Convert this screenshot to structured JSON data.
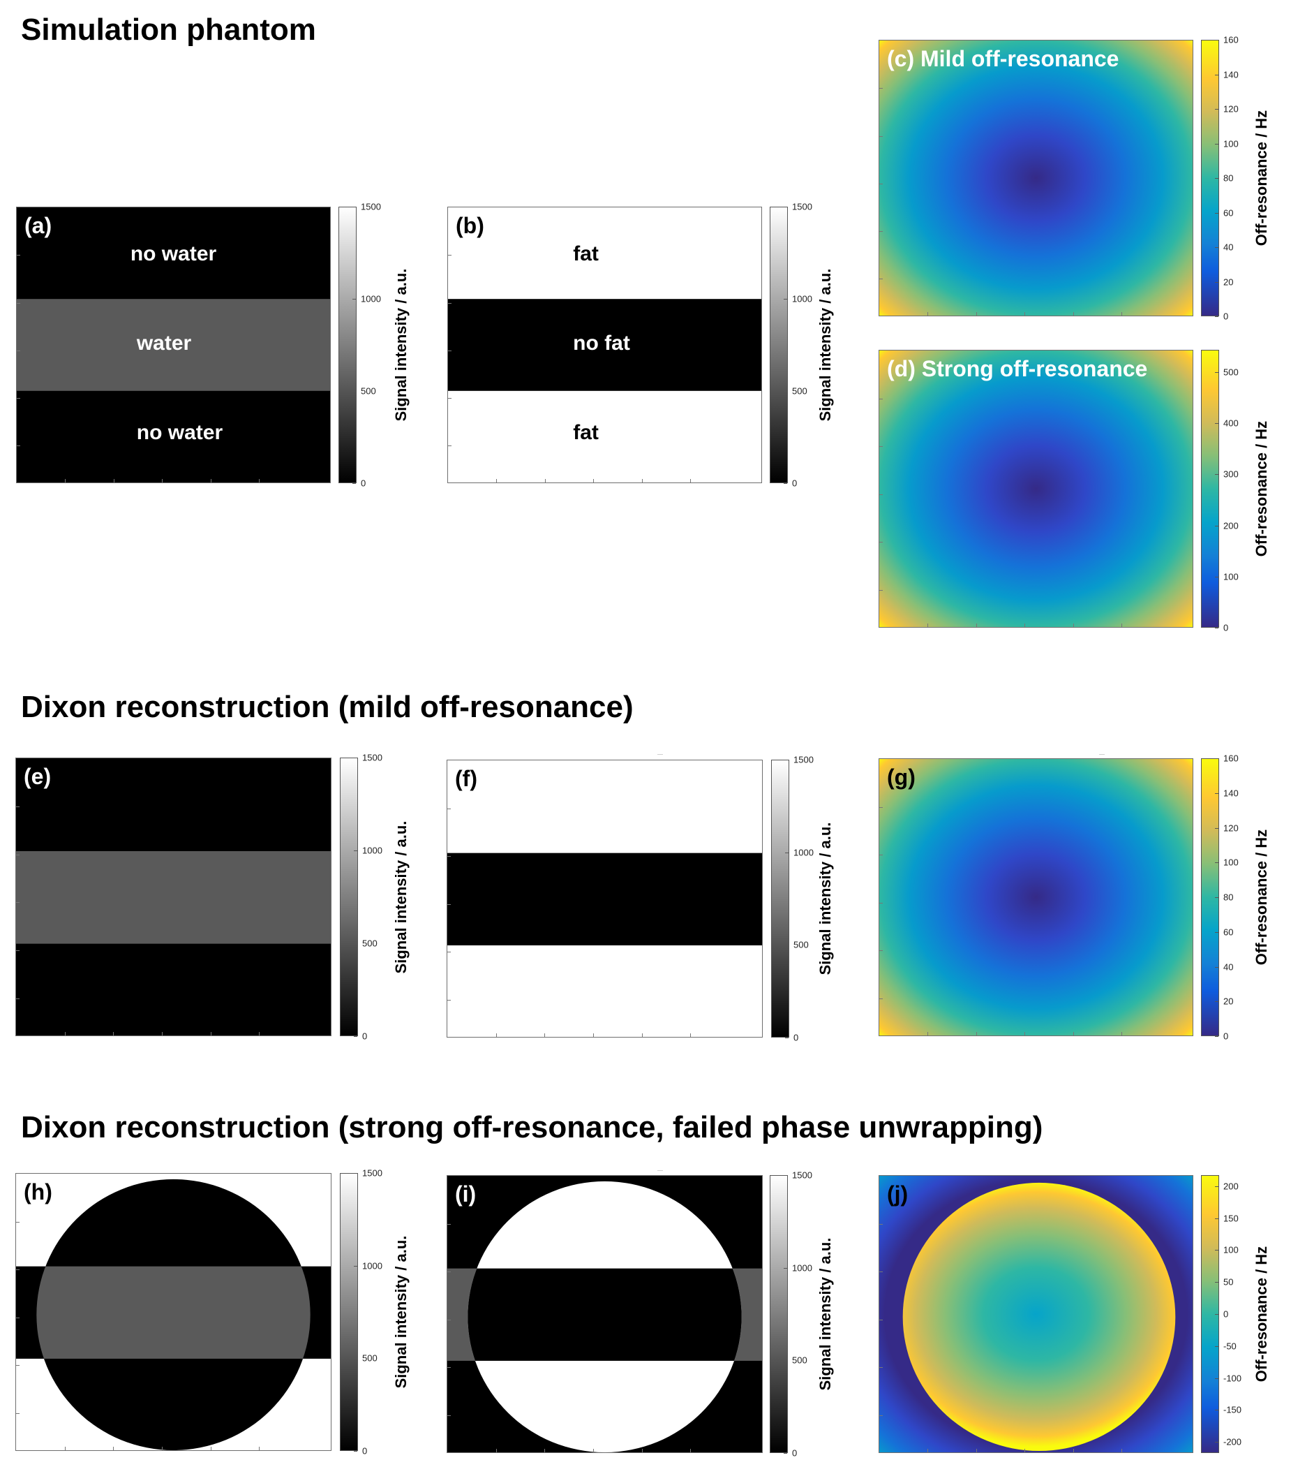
{
  "sections": {
    "s1": "Simulation phantom",
    "s2": "Dixon reconstruction (mild off-resonance)",
    "s3": "Dixon reconstruction (strong off-resonance, failed phase unwrapping)"
  },
  "panels": {
    "a": {
      "label": "(a)",
      "annotations": [
        "no water",
        "water",
        "no water"
      ]
    },
    "b": {
      "label": "(b)",
      "annotations": [
        "fat",
        "no fat",
        "fat"
      ]
    },
    "c": {
      "label": "(c) Mild off-resonance"
    },
    "d": {
      "label": "(d) Strong off-resonance"
    },
    "e": {
      "label": "(e)"
    },
    "f": {
      "label": "(f)"
    },
    "g": {
      "label": "(g)"
    },
    "h": {
      "label": "(h)"
    },
    "i": {
      "label": "(i)"
    },
    "j": {
      "label": "(j)"
    }
  },
  "colorbars": {
    "signal": {
      "label": "Signal intensity / a.u.",
      "ticks": [
        "1500",
        "1000",
        "500",
        "0"
      ],
      "colormap": "gray"
    },
    "mild": {
      "label": "Off-resonance / Hz",
      "ticks": [
        "160",
        "140",
        "120",
        "100",
        "80",
        "60",
        "40",
        "20",
        "0"
      ],
      "colormap": "parula"
    },
    "strong": {
      "label": "Off-resonance / Hz",
      "ticks": [
        "500",
        "400",
        "300",
        "200",
        "100",
        "0"
      ],
      "colormap": "parula"
    },
    "wrapped": {
      "label": "Off-resonance / Hz",
      "ticks": [
        "200",
        "150",
        "100",
        "50",
        "0",
        "-50",
        "-100",
        "-150",
        "-200"
      ],
      "colormap": "parula"
    }
  },
  "colors": {
    "water_gray": "#5a5a5a",
    "background": "#ffffff",
    "label_light": "#ffffff",
    "label_dark": "#000000"
  }
}
